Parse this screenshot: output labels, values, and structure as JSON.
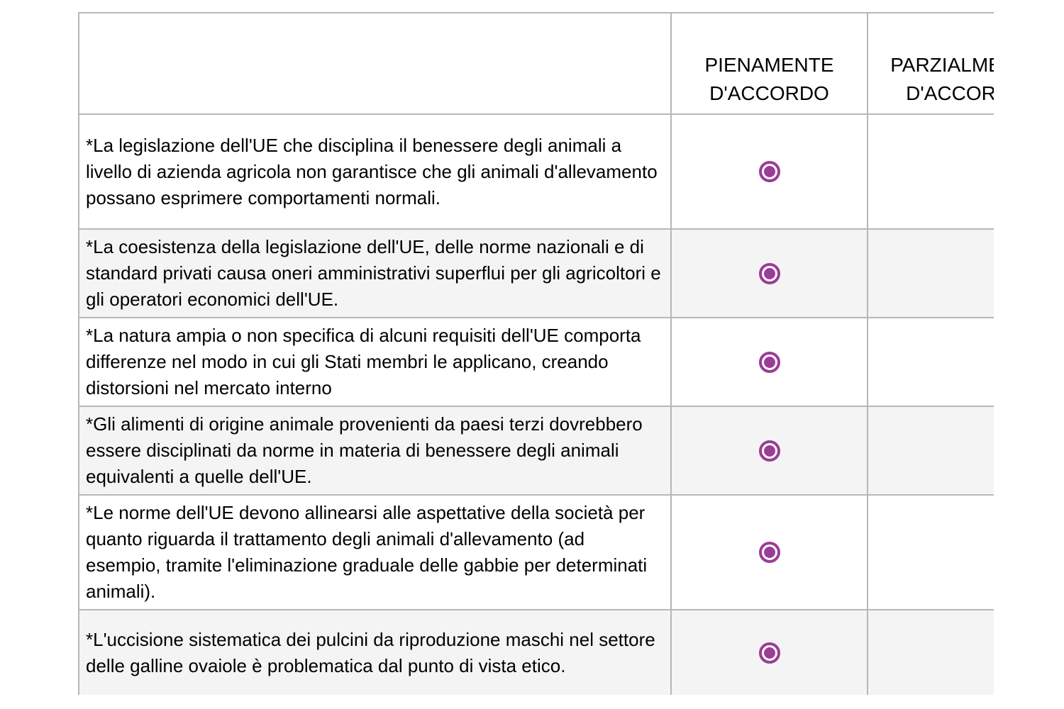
{
  "colors": {
    "accent": "#9b3d96",
    "row_alt_background": "#f4f4f4",
    "border": "#b7b7b7",
    "text": "#000000",
    "background": "#ffffff"
  },
  "table": {
    "columns": [
      {
        "label": ""
      },
      {
        "label": "PIENAMENTE D'ACCORDO"
      },
      {
        "label": "PARZIALMENTE D'ACCORDO",
        "note": "clipped at right edge of viewport"
      }
    ],
    "rows": [
      {
        "statement": "*La legislazione dell'UE che disciplina il benessere degli animali a livello di azienda agricola non garantisce che gli animali d'allevamento possano esprimere comportamenti normali.",
        "selected": "PIENAMENTE D'ACCORDO"
      },
      {
        "statement": "*La coesistenza della legislazione dell'UE, delle norme nazionali e di standard privati causa oneri amministrativi superflui per gli agricoltori e gli operatori economici dell'UE.",
        "selected": "PIENAMENTE D'ACCORDO"
      },
      {
        "statement": "*La natura ampia o non specifica di alcuni requisiti dell'UE comporta differenze nel modo in cui gli Stati membri le applicano, creando distorsioni nel mercato interno",
        "selected": "PIENAMENTE D'ACCORDO"
      },
      {
        "statement": "*Gli alimenti di origine animale provenienti da paesi terzi dovrebbero essere disciplinati da norme in materia di benessere degli animali equivalenti a quelle dell'UE.",
        "selected": "PIENAMENTE D'ACCORDO"
      },
      {
        "statement": "*Le norme dell'UE devono allinearsi alle aspettative della società per quanto riguarda il trattamento degli animali d'allevamento (ad esempio, tramite l'eliminazione graduale delle gabbie per determinati animali).",
        "selected": "PIENAMENTE D'ACCORDO"
      },
      {
        "statement": "*L'uccisione sistematica dei pulcini da riproduzione maschi nel settore delle galline ovaiole è problematica dal punto di vista etico.",
        "selected": "PIENAMENTE D'ACCORDO"
      }
    ]
  }
}
